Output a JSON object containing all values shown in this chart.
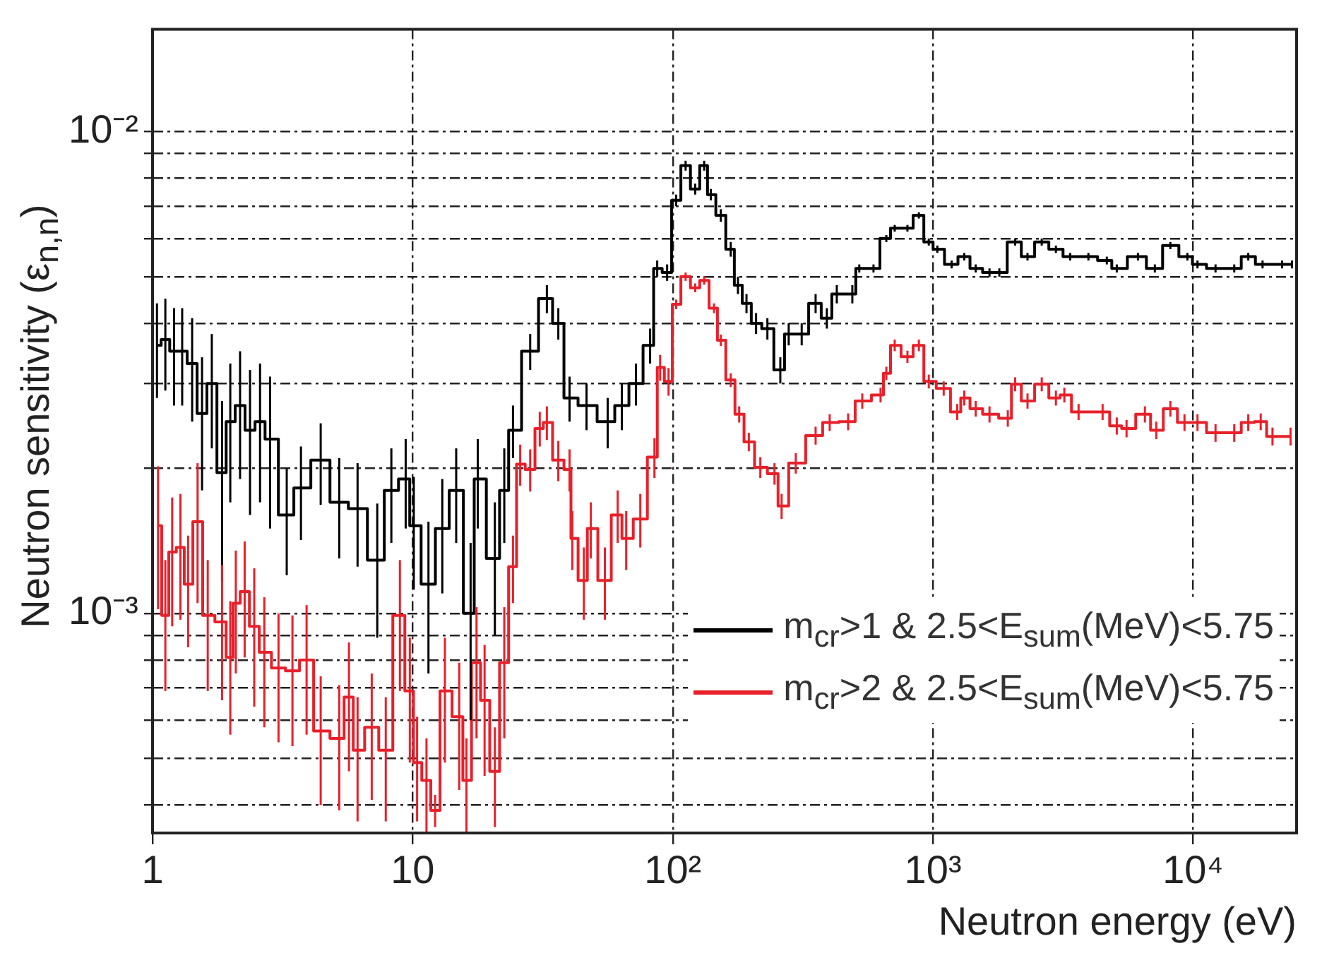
{
  "chart_data": {
    "type": "step",
    "xlabel": "Neutron energy (eV)",
    "ylabel": "Neutron sensitivity (ε$_{n,n}$)",
    "log": "xy",
    "grid": true,
    "legend": "bottom right",
    "xlim": [
      1,
      25000
    ],
    "ylim": [
      0.00035,
      0.0163
    ],
    "xticks": [
      1,
      10,
      {
        "value": 100,
        "label": "10²"
      },
      {
        "value": 1000,
        "label": "10³"
      },
      {
        "value": 10000,
        "label": "10⁴"
      }
    ],
    "yticks": [
      {
        "value": 0.0004,
        "label": null
      },
      {
        "value": 0.0005,
        "label": null
      },
      {
        "value": 0.0006,
        "label": null
      },
      {
        "value": 0.0007,
        "label": null
      },
      {
        "value": 0.0008,
        "label": null
      },
      {
        "value": 0.0009,
        "label": null
      },
      {
        "value": 0.001,
        "label": "10⁻³"
      },
      {
        "value": 0.002,
        "label": null
      },
      {
        "value": 0.003,
        "label": null
      },
      {
        "value": 0.004,
        "label": null
      },
      {
        "value": 0.005,
        "label": null
      },
      {
        "value": 0.006,
        "label": null
      },
      {
        "value": 0.007,
        "label": null
      },
      {
        "value": 0.008,
        "label": null
      },
      {
        "value": 0.009,
        "label": null
      },
      {
        "value": 0.01,
        "label": "10⁻²"
      }
    ],
    "series": [
      {
        "name": "m$_{cr}$>1 & 2.5<E$_{sum}$(MeV)<5.75",
        "color": "#000000",
        "x": [
          1.04,
          1.12,
          1.21,
          1.3,
          1.42,
          1.55,
          1.69,
          1.85,
          1.99,
          2.17,
          2.37,
          2.59,
          2.83,
          3.28,
          3.72,
          4.43,
          5.22,
          6.14,
          7.31,
          8.28,
          9.4,
          10.1,
          11.5,
          13,
          14.7,
          16.7,
          17.8,
          20.7,
          22.5,
          24.3,
          28.3,
          32.8,
          36.3,
          40.1,
          46.6,
          56.2,
          63.7,
          72.2,
          81.8,
          87.1,
          95.1,
          103,
          112,
          122,
          132,
          140,
          153,
          167,
          178,
          192,
          209,
          231,
          259,
          279,
          313,
          354,
          391,
          427,
          490,
          521,
          591,
          662,
          713,
          798,
          883,
          964,
          1040,
          1180,
          1320,
          1460,
          1650,
          1800,
          2070,
          2310,
          2620,
          2970,
          3370,
          3960,
          4660,
          5090,
          6140,
          7130,
          8180,
          9510,
          10400,
          12200,
          14400,
          16300,
          18500,
          22000,
          24000
        ],
        "values": [
          0.0036,
          0.0037,
          0.0035,
          0.0035,
          0.0033,
          0.0026,
          0.003,
          0.00196,
          0.0025,
          0.0027,
          0.0024,
          0.0025,
          0.0023,
          0.0016,
          0.00182,
          0.00208,
          0.0017,
          0.00165,
          0.00129,
          0.0018,
          0.0019,
          0.00152,
          0.00115,
          0.0015,
          0.0018,
          0.001,
          0.0019,
          0.0013,
          0.0018,
          0.0024,
          0.0035,
          0.0045,
          0.004,
          0.0028,
          0.0027,
          0.0025,
          0.0027,
          0.003,
          0.0036,
          0.0052,
          0.0051,
          0.0072,
          0.0085,
          0.0076,
          0.0085,
          0.0074,
          0.0067,
          0.0057,
          0.0048,
          0.0044,
          0.004,
          0.0039,
          0.0032,
          0.0038,
          0.0038,
          0.0044,
          0.0041,
          0.0046,
          0.0046,
          0.0052,
          0.0052,
          0.006,
          0.0063,
          0.0063,
          0.0067,
          0.0059,
          0.0057,
          0.0053,
          0.0055,
          0.0052,
          0.0051,
          0.0051,
          0.0059,
          0.0055,
          0.0059,
          0.0057,
          0.0055,
          0.0055,
          0.0054,
          0.0052,
          0.0055,
          0.0052,
          0.0058,
          0.0055,
          0.0053,
          0.0052,
          0.0052,
          0.0055,
          0.0053,
          0.0053,
          0.0053
        ],
        "errors": [
          0.0008,
          0.0008,
          0.0008,
          0.0008,
          0.0008,
          0.0008,
          0.0008,
          0.0008,
          0.0008,
          0.0008,
          0.0008,
          0.0008,
          0.0008,
          0.0004,
          0.0004,
          0.0004,
          0.0004,
          0.0004,
          0.0004,
          0.0004,
          0.0004,
          0.0004,
          0.0004,
          0.0004,
          0.0004,
          0.0004,
          0.0004,
          0.0004,
          0.0004,
          0.0003,
          0.0003,
          0.0003,
          0.0003,
          0.0003,
          0.0003,
          0.0003,
          0.0003,
          0.0003,
          0.0003,
          0.0002,
          0.0002,
          0.0002,
          0.0002,
          0.0002,
          0.0002,
          0.0002,
          0.0002,
          0.0002,
          0.0002,
          0.0002,
          0.0002,
          0.0002,
          0.0002,
          0.0002,
          0.0002,
          0.0002,
          0.0002,
          0.0002,
          0.0002,
          0.0001,
          0.0001,
          0.0001,
          0.0001,
          0.0001,
          0.0001,
          0.0001,
          0.0001,
          0.0001,
          0.0001,
          0.0001,
          0.0001,
          0.0001,
          0.0001,
          0.0001,
          0.0001,
          0.0001,
          0.0001,
          0.0001,
          0.0001,
          0.0001,
          0.0001,
          0.0001,
          0.0001,
          0.0001,
          0.0001,
          0.0001,
          0.0001,
          0.0001,
          0.0001,
          0.0001,
          0.0001
        ]
      },
      {
        "name": "m$_{cr}$>2 & 2.5<E$_{sum}$(MeV)<5.75",
        "color": "#e8202a",
        "x": [
          1.05,
          1.12,
          1.19,
          1.28,
          1.37,
          1.49,
          1.63,
          1.85,
          1.99,
          2.09,
          2.26,
          2.46,
          2.69,
          3.05,
          3.45,
          3.91,
          4.43,
          5.22,
          5.69,
          6.14,
          6.96,
          7.88,
          8.93,
          9.75,
          10.4,
          11.3,
          12.2,
          13.3,
          15.1,
          16.1,
          17.6,
          18.9,
          20.7,
          22.5,
          24.3,
          25.9,
          28.3,
          30.8,
          32.8,
          36.3,
          40.1,
          41.1,
          45.5,
          48.4,
          54.8,
          61.4,
          66.2,
          75,
          85,
          89.4,
          96.3,
          103,
          112,
          122,
          132,
          144,
          153,
          167,
          180,
          196,
          217,
          246,
          262,
          297,
          354,
          401,
          472,
          535,
          629,
          662,
          713,
          798,
          883,
          964,
          1100,
          1240,
          1320,
          1460,
          1650,
          1940,
          2070,
          2310,
          2620,
          2970,
          3200,
          3630,
          4490,
          5090,
          5550,
          6530,
          7220,
          8180,
          9270,
          10400,
          12200,
          14400,
          16300,
          18200,
          20200,
          23700
        ],
        "values": [
          0.00152,
          0.00099,
          0.00134,
          0.00137,
          0.00115,
          0.00155,
          0.00099,
          0.00096,
          0.00081,
          0.00105,
          0.00111,
          0.00094,
          0.00083,
          0.00077,
          0.00076,
          0.0008,
          0.00057,
          0.00055,
          0.00067,
          0.00052,
          0.00058,
          0.00052,
          0.00099,
          0.00069,
          0.00049,
          0.00045,
          0.00039,
          0.00069,
          0.00061,
          0.00045,
          0.00079,
          0.00066,
          0.00047,
          0.00079,
          0.00125,
          0.00204,
          0.00199,
          0.00242,
          0.00249,
          0.00208,
          0.00199,
          0.00143,
          0.00117,
          0.0015,
          0.00117,
          0.0016,
          0.00143,
          0.00157,
          0.00211,
          0.00324,
          0.00303,
          0.00438,
          0.005,
          0.00474,
          0.00491,
          0.0043,
          0.00369,
          0.00305,
          0.00259,
          0.00227,
          0.00201,
          0.00195,
          0.00167,
          0.00205,
          0.00234,
          0.00249,
          0.0025,
          0.00276,
          0.00284,
          0.00315,
          0.0036,
          0.00341,
          0.0036,
          0.00303,
          0.00293,
          0.00262,
          0.0028,
          0.00266,
          0.00259,
          0.00254,
          0.00299,
          0.00276,
          0.00299,
          0.0028,
          0.00284,
          0.00262,
          0.00262,
          0.00245,
          0.00242,
          0.00259,
          0.0024,
          0.00266,
          0.00249,
          0.00249,
          0.00237,
          0.00237,
          0.00249,
          0.0025,
          0.00233,
          0.00233
        ],
        "errors": [
          0.0005,
          0.0003,
          0.0004,
          0.0004,
          0.0003,
          0.0005,
          0.0003,
          0.0003,
          0.00025,
          0.0003,
          0.0003,
          0.0003,
          0.00025,
          0.00023,
          0.00023,
          0.00024,
          0.00017,
          0.00016,
          0.0002,
          0.00015,
          0.00017,
          0.00015,
          0.0003,
          0.0002,
          0.00012,
          0.0001,
          3e-05,
          0.0002,
          0.00018,
          0.0001,
          0.00024,
          0.0002,
          0.00011,
          0.00024,
          0.0002,
          0.0002,
          0.0002,
          0.0002,
          0.0002,
          0.0002,
          0.0002,
          0.0002,
          0.0002,
          0.0002,
          0.0002,
          0.0002,
          0.0002,
          0.0002,
          0.0002,
          0.0002,
          0.0002,
          0.0001,
          0.0001,
          0.0001,
          0.0001,
          0.0001,
          0.0001,
          0.0001,
          0.0001,
          0.0001,
          0.0001,
          0.0001,
          0.0001,
          0.0001,
          0.0001,
          0.0001,
          0.0001,
          0.0001,
          0.0001,
          0.0001,
          0.0001,
          0.0001,
          0.0001,
          0.0001,
          0.0001,
          0.0001,
          0.0001,
          0.0001,
          0.0001,
          0.0001,
          0.0001,
          0.0001,
          0.0001,
          0.0001,
          0.0001,
          0.0001,
          0.0001,
          0.0001,
          0.0001,
          0.0001,
          0.0001,
          0.0001,
          0.0001,
          0.0001,
          0.0001,
          0.0001,
          0.0001,
          0.0001,
          0.0001,
          0.0001
        ]
      }
    ]
  }
}
